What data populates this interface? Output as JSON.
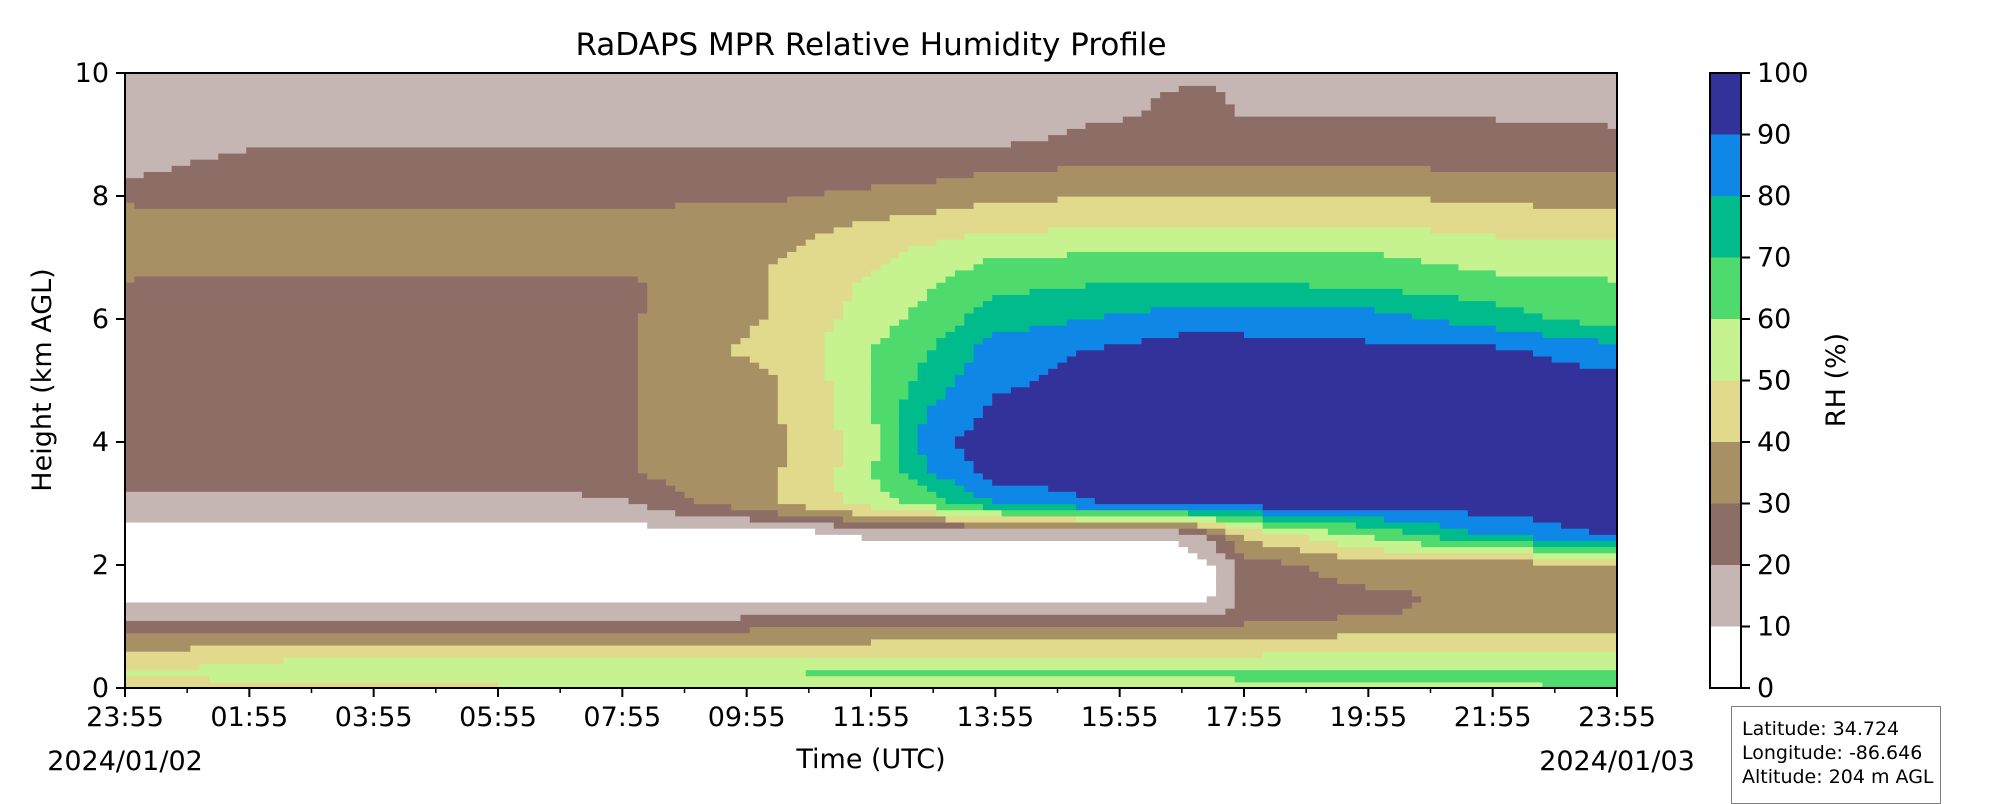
{
  "chart_data": {
    "type": "heatmap",
    "title": "RaDAPS MPR Relative Humidity Profile",
    "xlabel": "Time (UTC)",
    "ylabel": "Height (km AGL)",
    "x_ticks": [
      "23:55",
      "01:55",
      "03:55",
      "05:55",
      "07:55",
      "09:55",
      "11:55",
      "13:55",
      "15:55",
      "17:55",
      "19:55",
      "21:55",
      "23:55"
    ],
    "x_tick_hours": [
      0,
      2,
      4,
      6,
      8,
      10,
      12,
      14,
      16,
      18,
      20,
      22,
      24
    ],
    "xlim_hours": [
      0,
      24
    ],
    "start_date": "2024/01/02",
    "end_date": "2024/01/03",
    "y_ticks": [
      0,
      2,
      4,
      6,
      8,
      10
    ],
    "ylim": [
      0,
      10
    ],
    "colorbar": {
      "label": "RH (%)",
      "ticks": [
        0,
        10,
        20,
        30,
        40,
        50,
        60,
        70,
        80,
        90,
        100
      ],
      "levels": [
        {
          "range": [
            0,
            10
          ],
          "color": "#ffffff"
        },
        {
          "range": [
            10,
            20
          ],
          "color": "#c5b6b4"
        },
        {
          "range": [
            20,
            30
          ],
          "color": "#8d6e66"
        },
        {
          "range": [
            30,
            40
          ],
          "color": "#a89065"
        },
        {
          "range": [
            40,
            50
          ],
          "color": "#e1d98c"
        },
        {
          "range": [
            50,
            60
          ],
          "color": "#c6f38f"
        },
        {
          "range": [
            60,
            70
          ],
          "color": "#4fda6d"
        },
        {
          "range": [
            70,
            80
          ],
          "color": "#00bc8c"
        },
        {
          "range": [
            80,
            90
          ],
          "color": "#0f87e6"
        },
        {
          "range": [
            90,
            100
          ],
          "color": "#33329b"
        }
      ]
    },
    "rh_field": {
      "time_hours": [
        0,
        2,
        4,
        6,
        8,
        9,
        10,
        11,
        12,
        13,
        14,
        16,
        17,
        17.5,
        18,
        20,
        22,
        24
      ],
      "height_km": [
        0,
        0.25,
        0.5,
        0.75,
        1,
        1.25,
        1.5,
        2,
        2.5,
        3,
        3.5,
        4,
        4.5,
        5,
        5.5,
        6,
        6.5,
        7,
        7.5,
        8,
        8.5,
        9,
        9.5,
        10
      ],
      "rh_percent_by_height": [
        [
          45,
          45,
          45,
          48,
          48,
          50,
          52,
          55,
          55,
          55,
          55,
          55,
          55,
          55,
          58,
          58,
          58,
          62
        ],
        [
          50,
          55,
          58,
          58,
          58,
          58,
          58,
          60,
          60,
          60,
          60,
          62,
          62,
          62,
          62,
          62,
          62,
          62
        ],
        [
          42,
          48,
          50,
          50,
          50,
          50,
          50,
          52,
          52,
          52,
          52,
          52,
          52,
          52,
          52,
          55,
          52,
          55
        ],
        [
          35,
          38,
          38,
          38,
          38,
          38,
          38,
          38,
          40,
          40,
          40,
          40,
          40,
          40,
          40,
          45,
          45,
          45
        ],
        [
          25,
          25,
          25,
          25,
          25,
          25,
          28,
          28,
          28,
          28,
          28,
          28,
          28,
          28,
          32,
          35,
          35,
          38
        ],
        [
          15,
          15,
          15,
          15,
          15,
          15,
          15,
          15,
          15,
          15,
          15,
          15,
          15,
          15,
          25,
          28,
          35,
          35
        ],
        [
          5,
          5,
          5,
          5,
          5,
          5,
          5,
          5,
          5,
          5,
          5,
          5,
          5,
          10,
          25,
          28,
          32,
          35
        ],
        [
          5,
          5,
          5,
          5,
          5,
          5,
          5,
          5,
          5,
          5,
          5,
          5,
          5,
          10,
          25,
          35,
          35,
          35
        ],
        [
          5,
          5,
          5,
          5,
          5,
          5,
          5,
          5,
          12,
          12,
          12,
          12,
          12,
          25,
          42,
          62,
          82,
          92
        ],
        [
          15,
          15,
          15,
          15,
          18,
          28,
          35,
          45,
          55,
          65,
          80,
          92,
          92,
          95,
          95,
          95,
          95,
          95
        ],
        [
          25,
          25,
          25,
          25,
          28,
          35,
          38,
          42,
          60,
          80,
          95,
          95,
          95,
          95,
          95,
          95,
          95,
          95
        ],
        [
          25,
          25,
          22,
          25,
          28,
          35,
          35,
          42,
          55,
          88,
          95,
          95,
          95,
          95,
          95,
          95,
          95,
          95
        ],
        [
          25,
          25,
          25,
          25,
          28,
          35,
          35,
          45,
          60,
          82,
          92,
          95,
          95,
          95,
          95,
          95,
          95,
          95
        ],
        [
          25,
          25,
          25,
          25,
          28,
          35,
          35,
          45,
          60,
          75,
          88,
          95,
          95,
          95,
          95,
          95,
          95,
          92
        ],
        [
          28,
          25,
          25,
          25,
          28,
          35,
          42,
          48,
          60,
          70,
          85,
          92,
          95,
          95,
          95,
          92,
          92,
          85
        ],
        [
          25,
          25,
          25,
          25,
          28,
          35,
          38,
          45,
          55,
          65,
          75,
          82,
          85,
          85,
          85,
          85,
          75,
          65
        ],
        [
          28,
          28,
          28,
          28,
          28,
          32,
          38,
          45,
          52,
          60,
          68,
          72,
          72,
          72,
          72,
          70,
          65,
          62
        ],
        [
          35,
          32,
          32,
          32,
          32,
          35,
          38,
          42,
          48,
          55,
          60,
          62,
          62,
          62,
          62,
          62,
          55,
          55
        ],
        [
          35,
          32,
          32,
          32,
          32,
          35,
          35,
          38,
          42,
          45,
          48,
          50,
          50,
          50,
          50,
          50,
          48,
          45
        ],
        [
          28,
          28,
          28,
          28,
          28,
          28,
          28,
          30,
          32,
          35,
          38,
          40,
          40,
          40,
          40,
          40,
          38,
          35
        ],
        [
          15,
          25,
          25,
          25,
          25,
          25,
          25,
          25,
          25,
          25,
          28,
          30,
          30,
          30,
          30,
          30,
          28,
          28
        ],
        [
          15,
          15,
          15,
          15,
          15,
          15,
          15,
          15,
          15,
          15,
          15,
          25,
          25,
          25,
          25,
          28,
          25,
          22
        ],
        [
          15,
          15,
          15,
          15,
          15,
          15,
          15,
          15,
          15,
          15,
          15,
          15,
          25,
          25,
          15,
          15,
          15,
          15
        ],
        [
          15,
          15,
          15,
          15,
          15,
          15,
          15,
          15,
          15,
          15,
          15,
          15,
          15,
          15,
          15,
          15,
          15,
          15
        ]
      ]
    }
  },
  "info_box": {
    "latitude": "Latitude: 34.724",
    "longitude": "Longitude: -86.646",
    "altitude": "Altitude: 204 m AGL"
  }
}
